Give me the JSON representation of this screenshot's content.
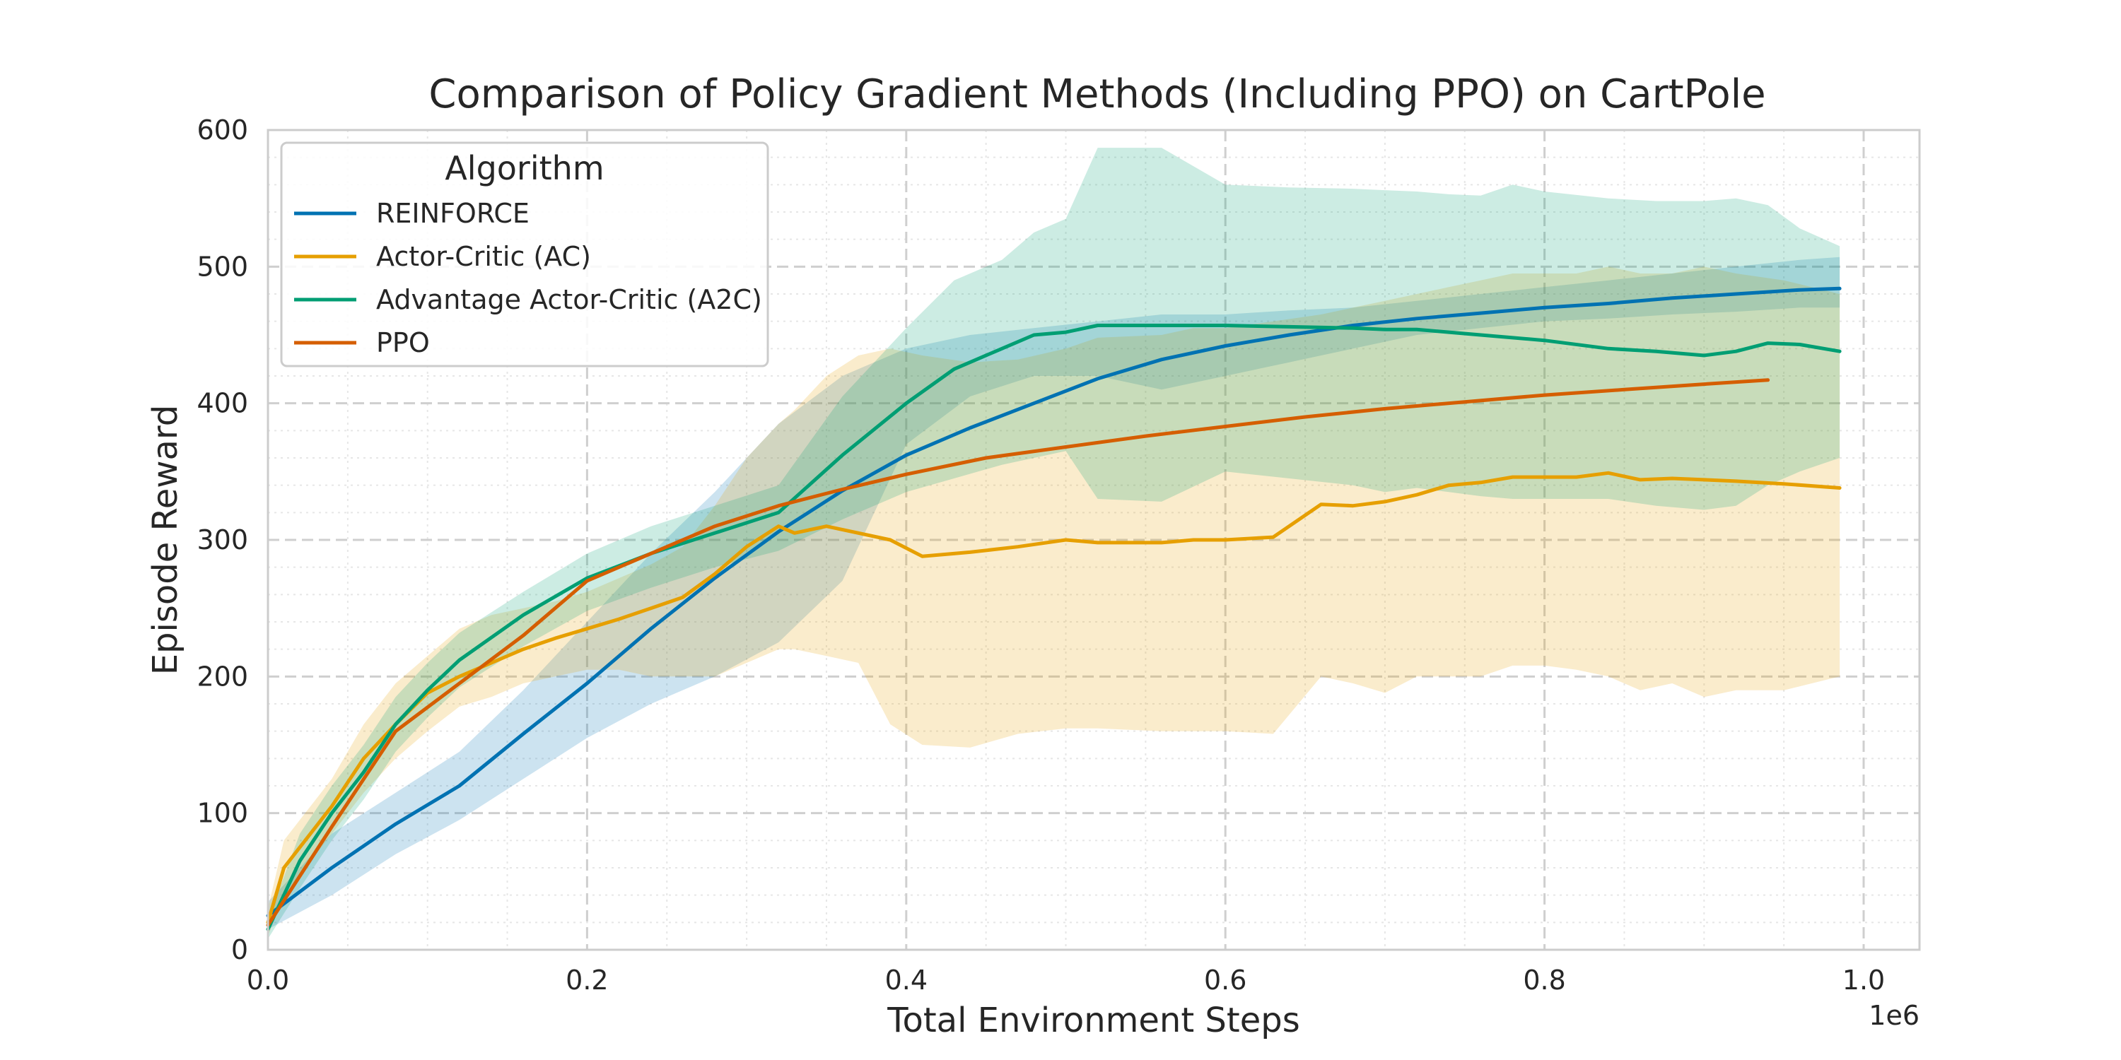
{
  "chart_data": {
    "type": "line",
    "title": "Comparison of Policy Gradient Methods (Including PPO) on CartPole",
    "xlabel": "Total Environment Steps",
    "ylabel": "Episode Reward",
    "x_scale_label": "1e6",
    "xlim": [
      0,
      1.035
    ],
    "ylim": [
      0,
      600
    ],
    "xticks": [
      0.0,
      0.2,
      0.4,
      0.6,
      0.8,
      1.0
    ],
    "xtick_labels": [
      "0.0",
      "0.2",
      "0.4",
      "0.6",
      "0.8",
      "1.0"
    ],
    "yticks": [
      0,
      100,
      200,
      300,
      400,
      500,
      600
    ],
    "ytick_labels": [
      "0",
      "100",
      "200",
      "300",
      "400",
      "500",
      "600"
    ],
    "grid": true,
    "legend": {
      "title": "Algorithm",
      "placement": "top-left"
    },
    "series": [
      {
        "name": "REINFORCE",
        "color": "#0072B2",
        "x": [
          0.0,
          0.04,
          0.08,
          0.12,
          0.16,
          0.2,
          0.24,
          0.28,
          0.32,
          0.36,
          0.4,
          0.44,
          0.48,
          0.52,
          0.56,
          0.6,
          0.64,
          0.68,
          0.72,
          0.76,
          0.8,
          0.84,
          0.88,
          0.92,
          0.96,
          0.985
        ],
        "y": [
          25,
          60,
          92,
          120,
          158,
          195,
          235,
          272,
          306,
          336,
          362,
          382,
          400,
          418,
          432,
          442,
          450,
          457,
          462,
          466,
          470,
          473,
          477,
          480,
          483,
          484
        ],
        "lower": [
          15,
          40,
          70,
          95,
          125,
          155,
          180,
          200,
          225,
          270,
          370,
          405,
          420,
          420,
          410,
          420,
          430,
          440,
          450,
          455,
          460,
          462,
          465,
          467,
          470,
          470
        ],
        "upper": [
          35,
          85,
          115,
          145,
          190,
          240,
          290,
          335,
          385,
          420,
          440,
          450,
          455,
          460,
          465,
          465,
          468,
          470,
          475,
          480,
          485,
          490,
          495,
          500,
          505,
          507
        ]
      },
      {
        "name": "Actor-Critic (AC)",
        "color": "#E69F00",
        "x": [
          0.0,
          0.01,
          0.02,
          0.04,
          0.06,
          0.08,
          0.1,
          0.12,
          0.14,
          0.16,
          0.18,
          0.2,
          0.22,
          0.24,
          0.26,
          0.28,
          0.3,
          0.32,
          0.33,
          0.35,
          0.37,
          0.39,
          0.41,
          0.44,
          0.47,
          0.5,
          0.52,
          0.56,
          0.58,
          0.6,
          0.63,
          0.66,
          0.68,
          0.7,
          0.72,
          0.74,
          0.76,
          0.78,
          0.8,
          0.82,
          0.84,
          0.86,
          0.88,
          0.9,
          0.92,
          0.95,
          0.985
        ],
        "y": [
          20,
          60,
          75,
          105,
          140,
          165,
          188,
          200,
          210,
          220,
          228,
          235,
          242,
          250,
          258,
          275,
          295,
          310,
          305,
          310,
          305,
          300,
          288,
          291,
          295,
          300,
          298,
          298,
          300,
          300,
          302,
          326,
          325,
          328,
          333,
          340,
          342,
          346,
          346,
          346,
          349,
          344,
          345,
          344,
          343,
          341,
          338
        ],
        "lower": [
          10,
          40,
          55,
          85,
          115,
          140,
          160,
          178,
          185,
          195,
          200,
          205,
          205,
          200,
          200,
          200,
          210,
          220,
          220,
          215,
          210,
          165,
          150,
          148,
          158,
          162,
          162,
          160,
          160,
          160,
          158,
          200,
          195,
          188,
          200,
          200,
          200,
          208,
          208,
          205,
          200,
          190,
          195,
          185,
          190,
          190,
          200
        ],
        "upper": [
          30,
          80,
          95,
          125,
          165,
          195,
          215,
          235,
          245,
          250,
          255,
          262,
          272,
          282,
          295,
          325,
          360,
          385,
          395,
          420,
          435,
          440,
          435,
          430,
          432,
          440,
          448,
          450,
          455,
          455,
          460,
          465,
          470,
          475,
          480,
          485,
          490,
          495,
          495,
          495,
          500,
          495,
          495,
          500,
          495,
          490,
          480
        ]
      },
      {
        "name": "Advantage Actor-Critic (A2C)",
        "color": "#009E73",
        "x": [
          0.0,
          0.02,
          0.04,
          0.06,
          0.08,
          0.1,
          0.12,
          0.16,
          0.2,
          0.24,
          0.28,
          0.32,
          0.36,
          0.4,
          0.43,
          0.46,
          0.48,
          0.5,
          0.52,
          0.56,
          0.6,
          0.64,
          0.68,
          0.7,
          0.72,
          0.74,
          0.76,
          0.78,
          0.8,
          0.84,
          0.87,
          0.9,
          0.92,
          0.94,
          0.96,
          0.985
        ],
        "y": [
          15,
          65,
          100,
          130,
          165,
          190,
          212,
          245,
          272,
          290,
          305,
          320,
          362,
          400,
          425,
          440,
          450,
          452,
          457,
          457,
          457,
          456,
          455,
          454,
          454,
          452,
          450,
          448,
          446,
          440,
          438,
          435,
          438,
          444,
          443,
          438
        ],
        "lower": [
          8,
          45,
          80,
          110,
          145,
          170,
          192,
          222,
          248,
          265,
          280,
          292,
          315,
          335,
          345,
          355,
          360,
          365,
          330,
          328,
          350,
          345,
          340,
          335,
          338,
          335,
          332,
          330,
          330,
          330,
          325,
          322,
          325,
          340,
          350,
          360
        ],
        "upper": [
          22,
          85,
          120,
          150,
          185,
          210,
          232,
          262,
          290,
          310,
          325,
          340,
          405,
          455,
          490,
          505,
          525,
          535,
          587,
          587,
          560,
          558,
          557,
          556,
          555,
          553,
          552,
          560,
          555,
          550,
          548,
          548,
          550,
          545,
          528,
          515
        ]
      },
      {
        "name": "PPO",
        "color": "#D55E00",
        "x": [
          0.0,
          0.04,
          0.08,
          0.12,
          0.16,
          0.2,
          0.24,
          0.28,
          0.32,
          0.36,
          0.4,
          0.45,
          0.5,
          0.55,
          0.6,
          0.65,
          0.7,
          0.75,
          0.8,
          0.85,
          0.9,
          0.94
        ],
        "y": [
          18,
          90,
          160,
          195,
          230,
          270,
          290,
          310,
          325,
          337,
          348,
          360,
          368,
          376,
          383,
          390,
          396,
          401,
          406,
          410,
          414,
          417
        ]
      }
    ]
  }
}
